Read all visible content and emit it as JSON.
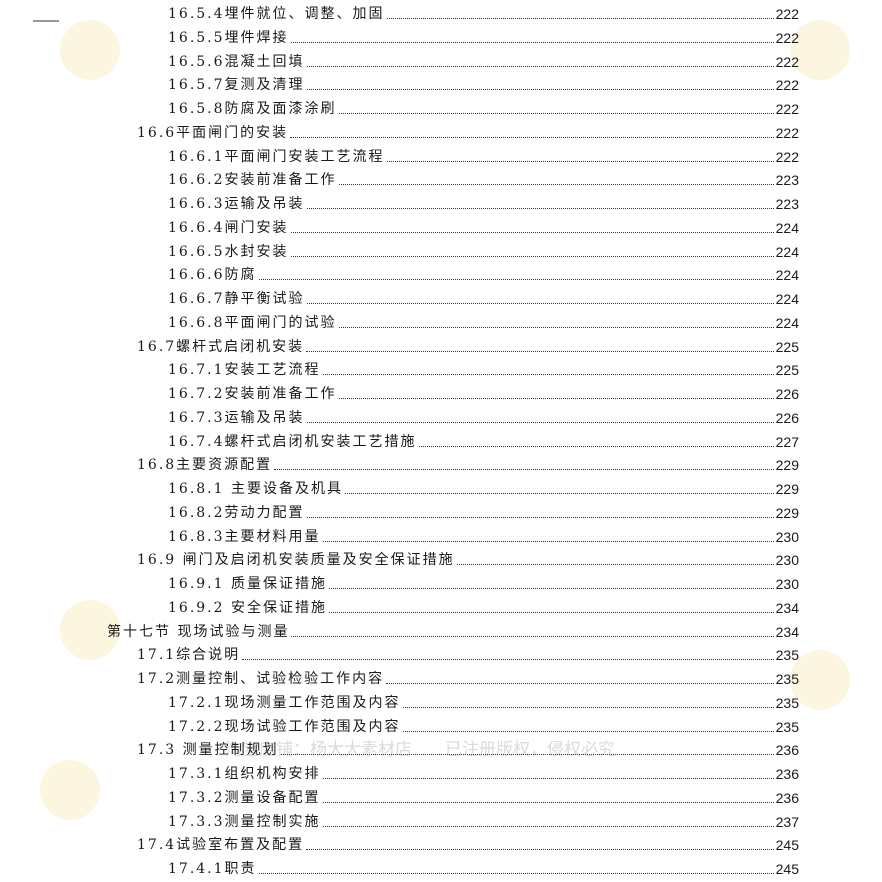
{
  "watermark": {
    "text": "淘宝店铺：杨大大素材店",
    "text2": "已注册版权，侵权必究"
  },
  "entries": [
    {
      "level": 2,
      "title": "16.5.4埋件就位、调整、加固",
      "page": "222"
    },
    {
      "level": 2,
      "title": "16.5.5埋件焊接",
      "page": "222"
    },
    {
      "level": 2,
      "title": "16.5.6混凝土回填",
      "page": "222"
    },
    {
      "level": 2,
      "title": "16.5.7复测及清理",
      "page": "222"
    },
    {
      "level": 2,
      "title": "16.5.8防腐及面漆涂刷",
      "page": "222"
    },
    {
      "level": 1,
      "title": "16.6平面闸门的安装",
      "page": "222"
    },
    {
      "level": 2,
      "title": "16.6.1平面闸门安装工艺流程",
      "page": "222"
    },
    {
      "level": 2,
      "title": "16.6.2安装前准备工作",
      "page": "223"
    },
    {
      "level": 2,
      "title": "16.6.3运输及吊装",
      "page": "223"
    },
    {
      "level": 2,
      "title": "16.6.4闸门安装",
      "page": "224"
    },
    {
      "level": 2,
      "title": "16.6.5水封安装",
      "page": "224"
    },
    {
      "level": 2,
      "title": "16.6.6防腐",
      "page": "224"
    },
    {
      "level": 2,
      "title": "16.6.7静平衡试验",
      "page": "224"
    },
    {
      "level": 2,
      "title": "16.6.8平面闸门的试验",
      "page": "224"
    },
    {
      "level": 1,
      "title": "16.7螺杆式启闭机安装",
      "page": "225"
    },
    {
      "level": 2,
      "title": "16.7.1安装工艺流程",
      "page": "225"
    },
    {
      "level": 2,
      "title": "16.7.2安装前准备工作",
      "page": "226"
    },
    {
      "level": 2,
      "title": "16.7.3运输及吊装",
      "page": "226"
    },
    {
      "level": 2,
      "title": "16.7.4螺杆式启闭机安装工艺措施",
      "page": "227"
    },
    {
      "level": 1,
      "title": "16.8主要资源配置",
      "page": "229"
    },
    {
      "level": 2,
      "title": "16.8.1 主要设备及机具",
      "page": "229"
    },
    {
      "level": 2,
      "title": "16.8.2劳动力配置",
      "page": "229"
    },
    {
      "level": 2,
      "title": "16.8.3主要材料用量",
      "page": "230"
    },
    {
      "level": 1,
      "title": "16.9 闸门及启闭机安装质量及安全保证措施",
      "page": "230"
    },
    {
      "level": 2,
      "title": "16.9.1 质量保证措施",
      "page": "230"
    },
    {
      "level": 2,
      "title": "16.9.2 安全保证措施",
      "page": "234"
    },
    {
      "level": 0,
      "title": "第十七节 现场试验与测量",
      "page": "234"
    },
    {
      "level": 1,
      "title": "17.1综合说明",
      "page": "235"
    },
    {
      "level": 1,
      "title": "17.2测量控制、试验检验工作内容",
      "page": "235"
    },
    {
      "level": 2,
      "title": "17.2.1现场测量工作范围及内容",
      "page": "235"
    },
    {
      "level": 2,
      "title": "17.2.2现场试验工作范围及内容",
      "page": "235"
    },
    {
      "level": 1,
      "title": "17.3 测量控制规划",
      "page": "236"
    },
    {
      "level": 2,
      "title": "17.3.1组织机构安排",
      "page": "236"
    },
    {
      "level": 2,
      "title": "17.3.2测量设备配置",
      "page": "236"
    },
    {
      "level": 2,
      "title": "17.3.3测量控制实施",
      "page": "237"
    },
    {
      "level": 1,
      "title": "17.4试验室布置及配置",
      "page": "245"
    },
    {
      "level": 2,
      "title": "17.4.1职责",
      "page": "245"
    }
  ]
}
